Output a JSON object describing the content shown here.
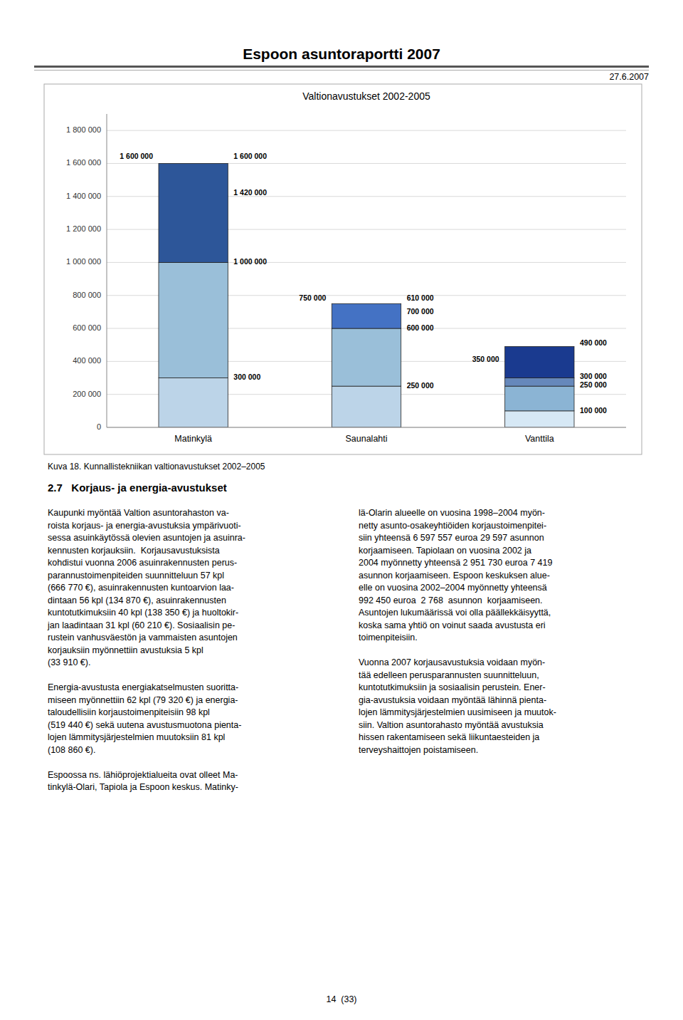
{
  "page": {
    "title": "Espoon asuntoraportti 2007",
    "date": "27.6.2007",
    "caption": "Kuva 18. Kunnallistekniikan valtionavustukset 2002–2005",
    "section_title": "2.7   Korjaus- ja energia-avustukset",
    "left_column": "Kaupunki myöntää Valtion asuntorahaston va-\nroista korjaus- ja energia-avustuksia ympärivuoti-\nsessa asuinkäytössä olevien asuntojen ja asuinra-\nkennusten korjauksiin.  Korjausavustuksista\nkohdistui vuonna 2006 asuinrakennusten perus-\nparannustoimenpiteiden suunnitteluun 57 kpl\n(666 770 €), asuinrakennusten kuntoarvion laa-\ndintaan 56 kpl (134 870 €), asuinrakennusten\nkuntotutkimuksiin 40 kpl (138 350 €) ja huoltokir-\njan laadintaan 31 kpl (60 210 €). Sosiaalisin pe-\nrustein vanhusväestön ja vammaisten asuntojen\nkorjauksiin myönnettiin avustuksia 5 kpl\n(33 910 €).\n\nEnergia-avustusta energiakatselmusten suoritta-\nmiseen myönnettiin 62 kpl (79 320 €) ja energia-\ntaloudellisiin korjaustoimenpiteisiin 98 kpl\n(519 440 €) sekä uutena avustusmuotona pienta-\nlojen lämmitysjärjestelmien muutoksiin 81 kpl\n(108 860 €).\n\nEspoossa ns. lähiöprojektialueita ovat olleet Ma-\ntinkylä-Olari, Tapiola ja Espoon keskus. Matinky-",
    "right_column": "lä-Olarin alueelle on vuosina 1998–2004 myön-\nnetty asunto-osakeyhtiöiden korjaustoimenpitei-\nsiin yhteensä 6 597 557 euroa 29 597 asunnon\nkorjaamiseen. Tapiolaan on vuosina 2002 ja\n2004 myönnetty yhteensä 2 951 730 euroa 7 419\nasunnon korjaamiseen. Espoon keskuksen alue-\nelle on vuosina 2002–2004 myönnetty yhteensä\n992 450 euroa  2 768  asunnon  korjaamiseen.\nAsuntojen lukumäärissä voi olla päällekkäisyyttä,\nkoska sama yhtiö on voinut saada avustusta eri\ntoimenpiteisiin.\n\nVuonna 2007 korjausavustuksia voidaan myön-\ntää edelleen perusparannusten suunnitteluun,\nkuntotutkimuksiin ja sosiaalisin perustein. Ener-\ngia-avustuksia voidaan myöntää lähinnä pienta-\nlojen lämmitysjärjestelmien uusimiseen ja muutok-\nsiin. Valtion asuntorahasto myöntää avustuksia\nhissen rakentamiseen sekä liikuntaesteiden ja\nterveyshaittojen poistamiseen.",
    "page_number": "14  (33)"
  },
  "chart_data": {
    "type": "bar",
    "stacked": true,
    "title": "Valtionavustukset 2002-2005",
    "categories": [
      "Matinkylä",
      "Saunalahti",
      "Vanttila"
    ],
    "series": [
      {
        "values": [
          300000,
          250000,
          100000
        ],
        "colors": [
          "#bcd4e8",
          "#bcd4e8",
          "#d6e8f5"
        ]
      },
      {
        "values": [
          700000,
          350000,
          150000
        ],
        "colors": [
          "#9abfd9",
          "#9abfd9",
          "#8bb4d4"
        ]
      },
      {
        "values": [
          600000,
          150000,
          50000
        ],
        "colors": [
          "#2d5699",
          "#4472c4",
          "#6688bb"
        ]
      },
      {
        "values": [
          null,
          null,
          190000
        ],
        "colors": [
          null,
          null,
          "#1a3a8f"
        ]
      }
    ],
    "ylim": [
      0,
      1900000
    ],
    "yticks": [
      0,
      {
        "value": 200000,
        "label": "200 000"
      },
      {
        "value": 400000,
        "label": "400 000"
      },
      {
        "value": 600000,
        "label": "600 000"
      },
      {
        "value": 800000,
        "label": "800 000"
      },
      {
        "value": 1000000,
        "label": "1 000 000"
      },
      {
        "value": 1200000,
        "label": "1 200 000"
      },
      {
        "value": 1400000,
        "label": "1 400 000"
      },
      {
        "value": 1600000,
        "label": "1 600 000"
      },
      {
        "value": 1800000,
        "label": "1 800 000"
      }
    ],
    "grid": true,
    "annotations": [
      {
        "text": "1 600 000",
        "category": "Matinkylä",
        "y": 1640000,
        "side": "left"
      },
      {
        "text": "1 600 000",
        "category": "Matinkylä",
        "y": 1640000,
        "side": "right"
      },
      {
        "text": "1 420 000",
        "category": "Matinkylä",
        "y": 1420000,
        "side": "right"
      },
      {
        "text": "1 000 000",
        "category": "Matinkylä",
        "y": 1000000,
        "side": "right"
      },
      {
        "text": "300 000",
        "category": "Matinkylä",
        "y": 300000,
        "side": "right"
      },
      {
        "text": "750 000",
        "category": "Saunalahti",
        "y": 780000,
        "side": "left"
      },
      {
        "text": "610 000",
        "category": "Saunalahti",
        "y": 780000,
        "side": "right"
      },
      {
        "text": "700 000",
        "category": "Saunalahti",
        "y": 700000,
        "side": "right"
      },
      {
        "text": "600 000",
        "category": "Saunalahti",
        "y": 600000,
        "side": "right"
      },
      {
        "text": "250 000",
        "category": "Saunalahti",
        "y": 250000,
        "side": "right"
      },
      {
        "text": "350 000",
        "category": "Vanttila",
        "y": 410000,
        "side": "left"
      },
      {
        "text": "490 000",
        "category": "Vanttila",
        "y": 510000,
        "side": "right"
      },
      {
        "text": "300 000",
        "category": "Vanttila",
        "y": 305000,
        "side": "right"
      },
      {
        "text": "250 000",
        "category": "Vanttila",
        "y": 252000,
        "side": "right"
      },
      {
        "text": "100 000",
        "category": "Vanttila",
        "y": 100000,
        "side": "right"
      }
    ]
  }
}
